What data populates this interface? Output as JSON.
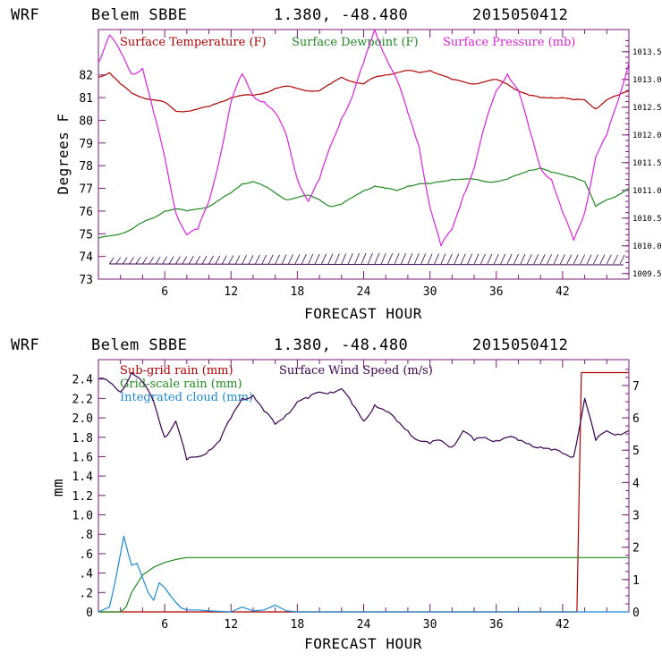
{
  "chart_data": [
    {
      "type": "line",
      "header": {
        "model": "WRF",
        "station": "Belem SBBE",
        "coords": "1.380, -48.480",
        "run": "2015050412"
      },
      "xlabel": "FORECAST HOUR",
      "ylabel": "Degrees F",
      "xlim": [
        0,
        48
      ],
      "ylim": [
        73,
        84
      ],
      "y2lim": [
        1009.4,
        1013.9
      ],
      "x_ticks": [
        "6",
        "12",
        "18",
        "24",
        "30",
        "36",
        "42"
      ],
      "y_ticks": [
        "73",
        "74",
        "75",
        "76",
        "77",
        "78",
        "79",
        "80",
        "81",
        "82"
      ],
      "y2_ticks": [
        "1009.5",
        "1010.0",
        "1010.5",
        "1011.0",
        "1011.5",
        "1012.0",
        "1012.5",
        "1013.0",
        "1013.5"
      ],
      "legend": [
        "Surface Temperature (F)",
        "Surface Dewpoint (F)",
        "Surface Pressure (mb)"
      ],
      "colors": {
        "temperature": "#b00000",
        "dewpoint": "#1f8a1f",
        "pressure": "#dd22dd",
        "barbs": "#3a0050"
      },
      "series": [
        {
          "name": "Surface Temperature (F)",
          "axis": "left",
          "x": [
            0,
            1,
            2,
            3,
            4,
            5,
            6,
            7,
            8,
            9,
            10,
            11,
            12,
            13,
            14,
            15,
            16,
            17,
            18,
            19,
            20,
            21,
            22,
            23,
            24,
            25,
            26,
            27,
            28,
            29,
            30,
            31,
            32,
            33,
            34,
            35,
            36,
            37,
            38,
            39,
            40,
            41,
            42,
            43,
            44,
            45,
            46,
            47,
            48
          ],
          "values": [
            81.9,
            82.1,
            81.6,
            81.2,
            81.0,
            80.9,
            80.8,
            80.4,
            80.4,
            80.5,
            80.6,
            80.8,
            81.0,
            81.1,
            81.1,
            81.2,
            81.4,
            81.5,
            81.4,
            81.3,
            81.3,
            81.6,
            81.9,
            81.7,
            81.6,
            81.9,
            82.0,
            82.1,
            82.2,
            82.1,
            82.2,
            82.0,
            81.8,
            81.7,
            81.6,
            81.7,
            81.8,
            81.6,
            81.3,
            81.1,
            81.0,
            81.0,
            81.0,
            80.9,
            80.9,
            80.5,
            80.9,
            81.1,
            81.3
          ]
        },
        {
          "name": "Surface Dewpoint (F)",
          "axis": "left",
          "x": [
            0,
            1,
            2,
            3,
            4,
            5,
            6,
            7,
            8,
            9,
            10,
            11,
            12,
            13,
            14,
            15,
            16,
            17,
            18,
            19,
            20,
            21,
            22,
            23,
            24,
            25,
            26,
            27,
            28,
            29,
            30,
            31,
            32,
            33,
            34,
            35,
            36,
            37,
            38,
            39,
            40,
            41,
            42,
            43,
            44,
            45,
            46,
            47,
            48
          ],
          "values": [
            74.8,
            74.9,
            75.0,
            75.2,
            75.5,
            75.7,
            76.0,
            76.1,
            76.0,
            76.1,
            76.2,
            76.5,
            76.8,
            77.2,
            77.3,
            77.1,
            76.8,
            76.5,
            76.6,
            76.7,
            76.5,
            76.2,
            76.3,
            76.6,
            76.9,
            77.1,
            77.0,
            76.9,
            77.1,
            77.2,
            77.2,
            77.3,
            77.4,
            77.4,
            77.4,
            77.3,
            77.3,
            77.4,
            77.6,
            77.8,
            77.9,
            77.7,
            77.6,
            77.5,
            77.3,
            76.2,
            76.5,
            76.7,
            77.0
          ]
        },
        {
          "name": "Surface Pressure (mb)",
          "axis": "right",
          "x": [
            0,
            1,
            2,
            3,
            4,
            5,
            6,
            7,
            8,
            9,
            10,
            11,
            12,
            13,
            14,
            15,
            16,
            17,
            18,
            19,
            20,
            21,
            22,
            23,
            24,
            25,
            26,
            27,
            28,
            29,
            30,
            31,
            32,
            33,
            34,
            35,
            36,
            37,
            38,
            39,
            40,
            41,
            42,
            43,
            44,
            45,
            46,
            47,
            48
          ],
          "values": [
            1013.3,
            1013.8,
            1013.5,
            1013.1,
            1013.2,
            1012.4,
            1011.6,
            1010.6,
            1010.2,
            1010.3,
            1010.8,
            1011.6,
            1012.6,
            1013.1,
            1012.7,
            1012.6,
            1012.4,
            1012.0,
            1011.2,
            1010.8,
            1011.2,
            1011.8,
            1012.3,
            1012.7,
            1013.3,
            1013.9,
            1013.4,
            1013.0,
            1012.4,
            1011.8,
            1010.7,
            1010.0,
            1010.3,
            1010.9,
            1011.4,
            1012.2,
            1012.8,
            1013.1,
            1012.8,
            1012.1,
            1011.4,
            1011.2,
            1010.6,
            1010.1,
            1010.6,
            1011.6,
            1012.0,
            1012.6,
            1013.3
          ]
        }
      ]
    },
    {
      "type": "line",
      "header": {
        "model": "WRF",
        "station": "Belem SBBE",
        "coords": "1.380, -48.480",
        "run": "2015050412"
      },
      "xlabel": "FORECAST HOUR",
      "ylabel": "mm",
      "xlim": [
        0,
        48
      ],
      "ylim": [
        0,
        2.6
      ],
      "y2lim": [
        0,
        7.8
      ],
      "x_ticks": [
        "6",
        "12",
        "18",
        "24",
        "30",
        "36",
        "42"
      ],
      "y_ticks": [
        "0",
        ".2",
        ".4",
        ".6",
        ".8",
        "1.0",
        "1.2",
        "1.4",
        "1.6",
        "1.8",
        "2.0",
        "2.2",
        "2.4"
      ],
      "y2_ticks": [
        "0",
        "1",
        "2",
        "3",
        "4",
        "5",
        "6",
        "7"
      ],
      "legend": [
        "Sub-grid rain (mm)",
        "Grid-scale rain (mm)",
        "Integrated cloud (mm)",
        "Surface Wind Speed (m/s)"
      ],
      "colors": {
        "subgrid": "#b00000",
        "gridscale": "#1f8a1f",
        "cloud": "#1a8ad4",
        "wind": "#3a0050"
      },
      "series": [
        {
          "name": "Sub-grid rain (mm)",
          "axis": "right",
          "x": [
            0,
            43.3,
            43.7,
            48
          ],
          "values": [
            0,
            0,
            7.4,
            7.4
          ]
        },
        {
          "name": "Grid-scale rain (mm)",
          "axis": "left",
          "x": [
            0,
            1,
            2,
            2.5,
            3,
            4,
            5,
            6,
            7,
            8,
            12,
            18,
            24,
            30,
            36,
            42,
            48
          ],
          "values": [
            0,
            0,
            0,
            0.05,
            0.2,
            0.38,
            0.46,
            0.51,
            0.54,
            0.56,
            0.56,
            0.56,
            0.56,
            0.56,
            0.56,
            0.56,
            0.56
          ]
        },
        {
          "name": "Integrated cloud (mm)",
          "axis": "left",
          "x": [
            0,
            1,
            1.5,
            2,
            2.3,
            2.7,
            3,
            3.5,
            4,
            4.5,
            5,
            5.5,
            6,
            6.5,
            7,
            7.5,
            8,
            9,
            10,
            12,
            13,
            14,
            15,
            16,
            17,
            18,
            48
          ],
          "values": [
            0,
            0.05,
            0.3,
            0.6,
            0.78,
            0.6,
            0.48,
            0.5,
            0.35,
            0.2,
            0.12,
            0.3,
            0.25,
            0.17,
            0.1,
            0.04,
            0.02,
            0.02,
            0.01,
            0,
            0.05,
            0.01,
            0.02,
            0.07,
            0.01,
            0,
            0
          ]
        },
        {
          "name": "Surface Wind Speed (m/s)",
          "axis": "right",
          "x": [
            0,
            1,
            2,
            3,
            4,
            5,
            6,
            7,
            8,
            9,
            10,
            11,
            12,
            13,
            14,
            15,
            16,
            17,
            18,
            19,
            20,
            21,
            22,
            23,
            24,
            25,
            26,
            27,
            28,
            29,
            30,
            31,
            32,
            33,
            34,
            35,
            36,
            37,
            38,
            39,
            40,
            41,
            42,
            43,
            44,
            45,
            46,
            47,
            48
          ],
          "values": [
            7.2,
            7.1,
            6.8,
            7.4,
            7.1,
            6.5,
            5.4,
            5.9,
            4.7,
            4.8,
            5.0,
            5.3,
            6.0,
            6.6,
            6.7,
            6.2,
            5.8,
            6.1,
            6.5,
            6.6,
            6.8,
            6.8,
            6.9,
            6.4,
            5.9,
            6.4,
            6.2,
            5.9,
            5.6,
            5.3,
            5.2,
            5.3,
            5.1,
            5.6,
            5.3,
            5.4,
            5.3,
            5.4,
            5.3,
            5.2,
            5.1,
            5.0,
            4.9,
            4.8,
            6.6,
            5.3,
            5.6,
            5.5,
            5.6
          ]
        }
      ]
    }
  ]
}
